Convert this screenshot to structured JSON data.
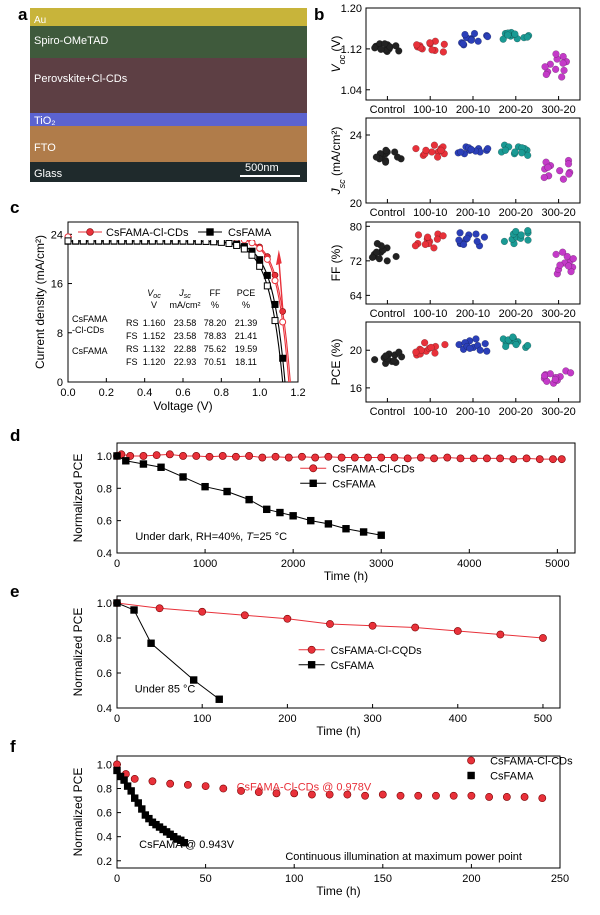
{
  "panel_labels": {
    "a": "a",
    "b": "b",
    "c": "c",
    "d": "d",
    "e": "e",
    "f": "f"
  },
  "sem": {
    "layers": [
      "Au",
      "Spiro-OMeTAD",
      "Perovskite+Cl-CDs",
      "TiO₂",
      "FTO",
      "Glass"
    ],
    "scale_bar": "500nm",
    "colors": {
      "au": "#c8b43a",
      "spiro": "#3f5a3c",
      "perovskite": "#5d3f44",
      "tio2": "#5b63d0",
      "fto": "#b07c4a",
      "glass": "#1f2a2c"
    }
  },
  "chart_data": [
    {
      "panel": "b",
      "type": "scatter",
      "categories": [
        "Control",
        "100-10",
        "200-10",
        "200-20",
        "300-20"
      ],
      "colors": [
        "#222222",
        "#e8313a",
        "#2b3fb8",
        "#1a9a94",
        "#c43ac8"
      ],
      "subplots": [
        {
          "ylabel": "V_oc (V)",
          "ylim": [
            1.02,
            1.2
          ],
          "ticks": [
            1.04,
            1.12,
            1.2
          ],
          "points": [
            [
              1.115,
              1.12,
              1.125,
              1.13,
              1.118,
              1.128,
              1.122,
              1.116,
              1.124,
              1.13,
              1.119,
              1.126
            ],
            [
              1.117,
              1.124,
              1.13,
              1.12,
              1.135,
              1.126,
              1.118,
              1.132,
              1.122,
              1.128,
              1.114,
              1.129
            ],
            [
              1.132,
              1.14,
              1.146,
              1.128,
              1.138,
              1.15,
              1.135,
              1.142,
              1.13,
              1.144,
              1.137,
              1.148
            ],
            [
              1.14,
              1.145,
              1.15,
              1.142,
              1.148,
              1.152,
              1.139,
              1.146,
              1.151,
              1.143,
              1.149,
              1.147
            ],
            [
              1.065,
              1.08,
              1.095,
              1.105,
              1.075,
              1.09,
              1.1,
              1.07,
              1.085,
              1.11,
              1.078,
              1.092
            ]
          ]
        },
        {
          "ylabel": "J_sc (mA/cm²)",
          "ylim": [
            20,
            25
          ],
          "ticks": [
            20,
            24
          ],
          "points": [
            [
              22.6,
              22.8,
              22.9,
              23.0,
              22.5,
              22.7,
              23.1,
              22.4,
              22.9,
              22.6,
              23.0,
              22.7
            ],
            [
              22.8,
              23.0,
              23.2,
              22.9,
              23.3,
              23.1,
              22.7,
              23.4,
              23.0,
              23.2,
              22.9,
              23.1
            ],
            [
              22.9,
              23.1,
              23.2,
              23.0,
              23.3,
              23.1,
              22.95,
              23.25,
              23.05,
              23.15,
              23.0,
              23.2
            ],
            [
              22.9,
              23.1,
              23.3,
              23.0,
              23.4,
              23.2,
              22.8,
              23.3,
              23.0,
              23.1,
              23.25,
              22.95
            ],
            [
              21.4,
              21.8,
              22.2,
              22.5,
              21.6,
              22.0,
              22.4,
              21.5,
              21.9,
              22.3,
              21.7,
              22.1
            ]
          ]
        },
        {
          "ylabel": "FF (%)",
          "ylim": [
            62,
            81
          ],
          "ticks": [
            64,
            72,
            80
          ],
          "points": [
            [
              72,
              73,
              74,
              75,
              73.5,
              74.5,
              72.5,
              75.5,
              73,
              74,
              76,
              72.8
            ],
            [
              75,
              76,
              77,
              78,
              76.5,
              77.5,
              75.5,
              78.2,
              76,
              77,
              75.8,
              77.8
            ],
            [
              75.5,
              76.5,
              77,
              78,
              76,
              77.5,
              76.2,
              78.5,
              75.8,
              77.2,
              76.8,
              78.2
            ],
            [
              76,
              77,
              78,
              78.5,
              77.5,
              78.2,
              76.5,
              79,
              77.2,
              78.8,
              76.8,
              78
            ],
            [
              69,
              70.5,
              72,
              73.5,
              70,
              71.5,
              73,
              69.5,
              71,
              72.5,
              74,
              70.8
            ]
          ]
        },
        {
          "ylabel": "PCE (%)",
          "ylim": [
            14.5,
            23
          ],
          "ticks": [
            16,
            20
          ],
          "points": [
            [
              18.6,
              19.0,
              19.3,
              19.6,
              18.8,
              19.2,
              19.5,
              18.7,
              19.1,
              19.4,
              19.8,
              18.9
            ],
            [
              19.5,
              19.9,
              20.2,
              20.6,
              19.7,
              20.1,
              20.4,
              19.6,
              20.0,
              20.3,
              20.8,
              19.8
            ],
            [
              19.9,
              20.3,
              20.6,
              21.0,
              20.1,
              20.5,
              20.8,
              20.0,
              20.4,
              20.7,
              21.2,
              20.2
            ],
            [
              20.3,
              20.7,
              21.0,
              21.3,
              20.5,
              20.9,
              21.2,
              20.4,
              20.8,
              21.1,
              21.4,
              20.6
            ],
            [
              16.5,
              17.0,
              17.4,
              17.8,
              16.8,
              17.2,
              17.6,
              16.7,
              17.1,
              17.5,
              16.9,
              17.3
            ]
          ]
        }
      ]
    },
    {
      "panel": "c",
      "type": "line",
      "xlabel": "Voltage (V)",
      "ylabel": "Current density (mA/cm²)",
      "xlim": [
        0,
        1.2
      ],
      "ylim": [
        0,
        26
      ],
      "xticks": [
        0.0,
        0.2,
        0.4,
        0.6,
        0.8,
        1.0,
        1.2
      ],
      "yticks": [
        0,
        8,
        16,
        24
      ],
      "legend": [
        "CsFAMA-Cl-CDs",
        "CsFAMA"
      ],
      "series": [
        {
          "name": "CsFAMA-Cl-CDs RS",
          "color": "#e8313a",
          "marker": "circle-filled",
          "jsc": 23.58,
          "voc": 1.16,
          "vk": 0.93,
          "n": 0.06
        },
        {
          "name": "CsFAMA-Cl-CDs FS",
          "color": "#e8313a",
          "marker": "circle-open",
          "jsc": 23.58,
          "voc": 1.152,
          "vk": 0.92,
          "n": 0.06
        },
        {
          "name": "CsFAMA RS",
          "color": "#000000",
          "marker": "square-filled",
          "jsc": 22.88,
          "voc": 1.132,
          "vk": 0.89,
          "n": 0.065
        },
        {
          "name": "CsFAMA FS",
          "color": "#000000",
          "marker": "square-open",
          "jsc": 22.93,
          "voc": 1.12,
          "vk": 0.86,
          "n": 0.07
        }
      ],
      "table": {
        "headers": [
          "V_oc",
          "J_sc",
          "FF",
          "PCE"
        ],
        "units": [
          "V",
          "mA/cm²",
          "%",
          "%"
        ],
        "rows": [
          {
            "group": "CsFAMA",
            "group2": "-Cl-CDs",
            "scan": "RS",
            "voc": "1.160",
            "jsc": "23.58",
            "ff": "78.20",
            "pce": "21.39"
          },
          {
            "group": "",
            "group2": "",
            "scan": "FS",
            "voc": "1.152",
            "jsc": "23.58",
            "ff": "78.83",
            "pce": "21.41"
          },
          {
            "group": "CsFAMA",
            "group2": "",
            "scan": "RS",
            "voc": "1.132",
            "jsc": "22.88",
            "ff": "75.62",
            "pce": "19.59"
          },
          {
            "group": "",
            "group2": "",
            "scan": "FS",
            "voc": "1.120",
            "jsc": "22.93",
            "ff": "70.51",
            "pce": "18.11"
          }
        ]
      }
    },
    {
      "panel": "d",
      "type": "line",
      "xlabel": "Time (h)",
      "ylabel": "Normalized PCE",
      "xlim": [
        0,
        5200
      ],
      "ylim": [
        0.4,
        1.08
      ],
      "xticks": [
        0,
        1000,
        2000,
        3000,
        4000,
        5000
      ],
      "yticks": [
        0.4,
        0.6,
        0.8,
        1.0
      ],
      "annotation": "Under dark, RH=40%, T=25 °C",
      "legend": [
        "CsFAMA-Cl-CDs",
        "CsFAMA"
      ],
      "series": [
        {
          "name": "CsFAMA-Cl-CDs",
          "color": "#e8313a",
          "marker": "circle",
          "x": [
            0,
            50,
            150,
            300,
            450,
            600,
            750,
            900,
            1050,
            1200,
            1350,
            1500,
            1650,
            1800,
            1950,
            2100,
            2250,
            2400,
            2550,
            2700,
            2850,
            3000,
            3150,
            3300,
            3450,
            3600,
            3750,
            3900,
            4050,
            4200,
            4350,
            4500,
            4650,
            4800,
            4950,
            5050
          ],
          "y": [
            1.0,
            1.01,
            1.0,
            1.0,
            1.005,
            1.01,
            1.0,
            1.0,
            0.995,
            1.0,
            0.995,
            1.0,
            0.99,
            0.995,
            0.99,
            0.995,
            0.99,
            0.995,
            0.99,
            0.99,
            0.99,
            0.99,
            0.99,
            0.985,
            0.99,
            0.985,
            0.99,
            0.985,
            0.985,
            0.985,
            0.985,
            0.98,
            0.985,
            0.98,
            0.98,
            0.98
          ]
        },
        {
          "name": "CsFAMA",
          "color": "#000000",
          "marker": "square",
          "x": [
            0,
            100,
            300,
            500,
            750,
            1000,
            1250,
            1500,
            1700,
            1850,
            2000,
            2200,
            2400,
            2600,
            2800,
            3000
          ],
          "y": [
            1.0,
            0.97,
            0.95,
            0.93,
            0.87,
            0.81,
            0.78,
            0.73,
            0.67,
            0.65,
            0.63,
            0.6,
            0.58,
            0.55,
            0.53,
            0.51
          ]
        }
      ]
    },
    {
      "panel": "e",
      "type": "line",
      "xlabel": "Time (h)",
      "ylabel": "Normalized PCE",
      "xlim": [
        0,
        520
      ],
      "ylim": [
        0.4,
        1.04
      ],
      "xticks": [
        0,
        100,
        200,
        300,
        400,
        500
      ],
      "yticks": [
        0.4,
        0.6,
        0.8,
        1.0
      ],
      "annotation": "Under 85 °C",
      "legend": [
        "CsFAMA-Cl-CQDs",
        "CsFAMA"
      ],
      "series": [
        {
          "name": "CsFAMA-Cl-CQDs",
          "color": "#e8313a",
          "marker": "circle",
          "x": [
            0,
            50,
            100,
            150,
            200,
            250,
            300,
            350,
            400,
            450,
            500
          ],
          "y": [
            1.0,
            0.97,
            0.95,
            0.93,
            0.91,
            0.88,
            0.87,
            0.86,
            0.84,
            0.82,
            0.8
          ]
        },
        {
          "name": "CsFAMA",
          "color": "#000000",
          "marker": "square",
          "x": [
            0,
            20,
            40,
            90,
            120
          ],
          "y": [
            1.0,
            0.96,
            0.77,
            0.56,
            0.45
          ]
        }
      ]
    },
    {
      "panel": "f",
      "type": "scatter",
      "xlabel": "Time (h)",
      "ylabel": "Normalized PCE",
      "xlim": [
        0,
        250
      ],
      "ylim": [
        0.14,
        1.07
      ],
      "xticks": [
        0,
        50,
        100,
        150,
        200,
        250
      ],
      "yticks": [
        0.2,
        0.4,
        0.6,
        0.8,
        1.0
      ],
      "annotation": "Continuous illumination at maximum power point",
      "legend": [
        "CsFAMA-Cl-CDs",
        "CsFAMA"
      ],
      "series": [
        {
          "name": "CsFAMA-Cl-CDs",
          "label": "CsFAMA-Cl-CDs @ 0.978V",
          "color": "#e8313a",
          "marker": "circle",
          "x": [
            0,
            5,
            10,
            20,
            30,
            40,
            50,
            60,
            70,
            80,
            90,
            100,
            110,
            120,
            130,
            140,
            150,
            160,
            170,
            180,
            190,
            200,
            210,
            220,
            230,
            240
          ],
          "y": [
            1.0,
            0.92,
            0.88,
            0.86,
            0.84,
            0.83,
            0.82,
            0.8,
            0.78,
            0.77,
            0.76,
            0.76,
            0.75,
            0.75,
            0.75,
            0.74,
            0.75,
            0.74,
            0.74,
            0.74,
            0.74,
            0.74,
            0.73,
            0.73,
            0.73,
            0.72
          ]
        },
        {
          "name": "CsFAMA",
          "label": "CsFAMA @ 0.943V",
          "color": "#000000",
          "marker": "square",
          "x": [
            0,
            2,
            4,
            6,
            8,
            10,
            12,
            14,
            16,
            18,
            20,
            22,
            24,
            26,
            28,
            30,
            32,
            34,
            36,
            38
          ],
          "y": [
            0.95,
            0.9,
            0.87,
            0.82,
            0.78,
            0.72,
            0.68,
            0.63,
            0.58,
            0.55,
            0.52,
            0.5,
            0.48,
            0.46,
            0.44,
            0.42,
            0.4,
            0.38,
            0.37,
            0.35
          ]
        }
      ]
    }
  ]
}
